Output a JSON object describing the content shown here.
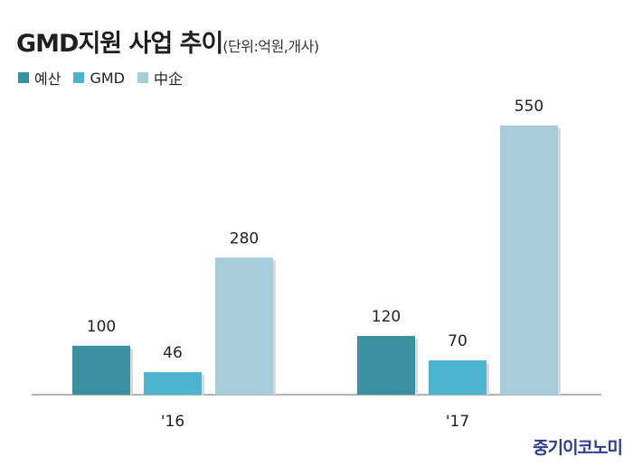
{
  "title": "GMD지원 사업 추이",
  "subtitle": "(단위:억원,개사)",
  "watermark": "중기이코노미",
  "chart_data": {
    "type": "bar",
    "categories": [
      "'16",
      "'17"
    ],
    "series": [
      {
        "name": "예산",
        "values": [
          100,
          120
        ],
        "color": "#3a8fa0"
      },
      {
        "name": "GMD",
        "values": [
          46,
          70
        ],
        "color": "#4db3cf"
      },
      {
        "name": "中企",
        "values": [
          280,
          550
        ],
        "color": "#a7ccda"
      }
    ],
    "ylim": [
      0,
      550
    ],
    "grid": false,
    "legend_position": "top-left"
  }
}
